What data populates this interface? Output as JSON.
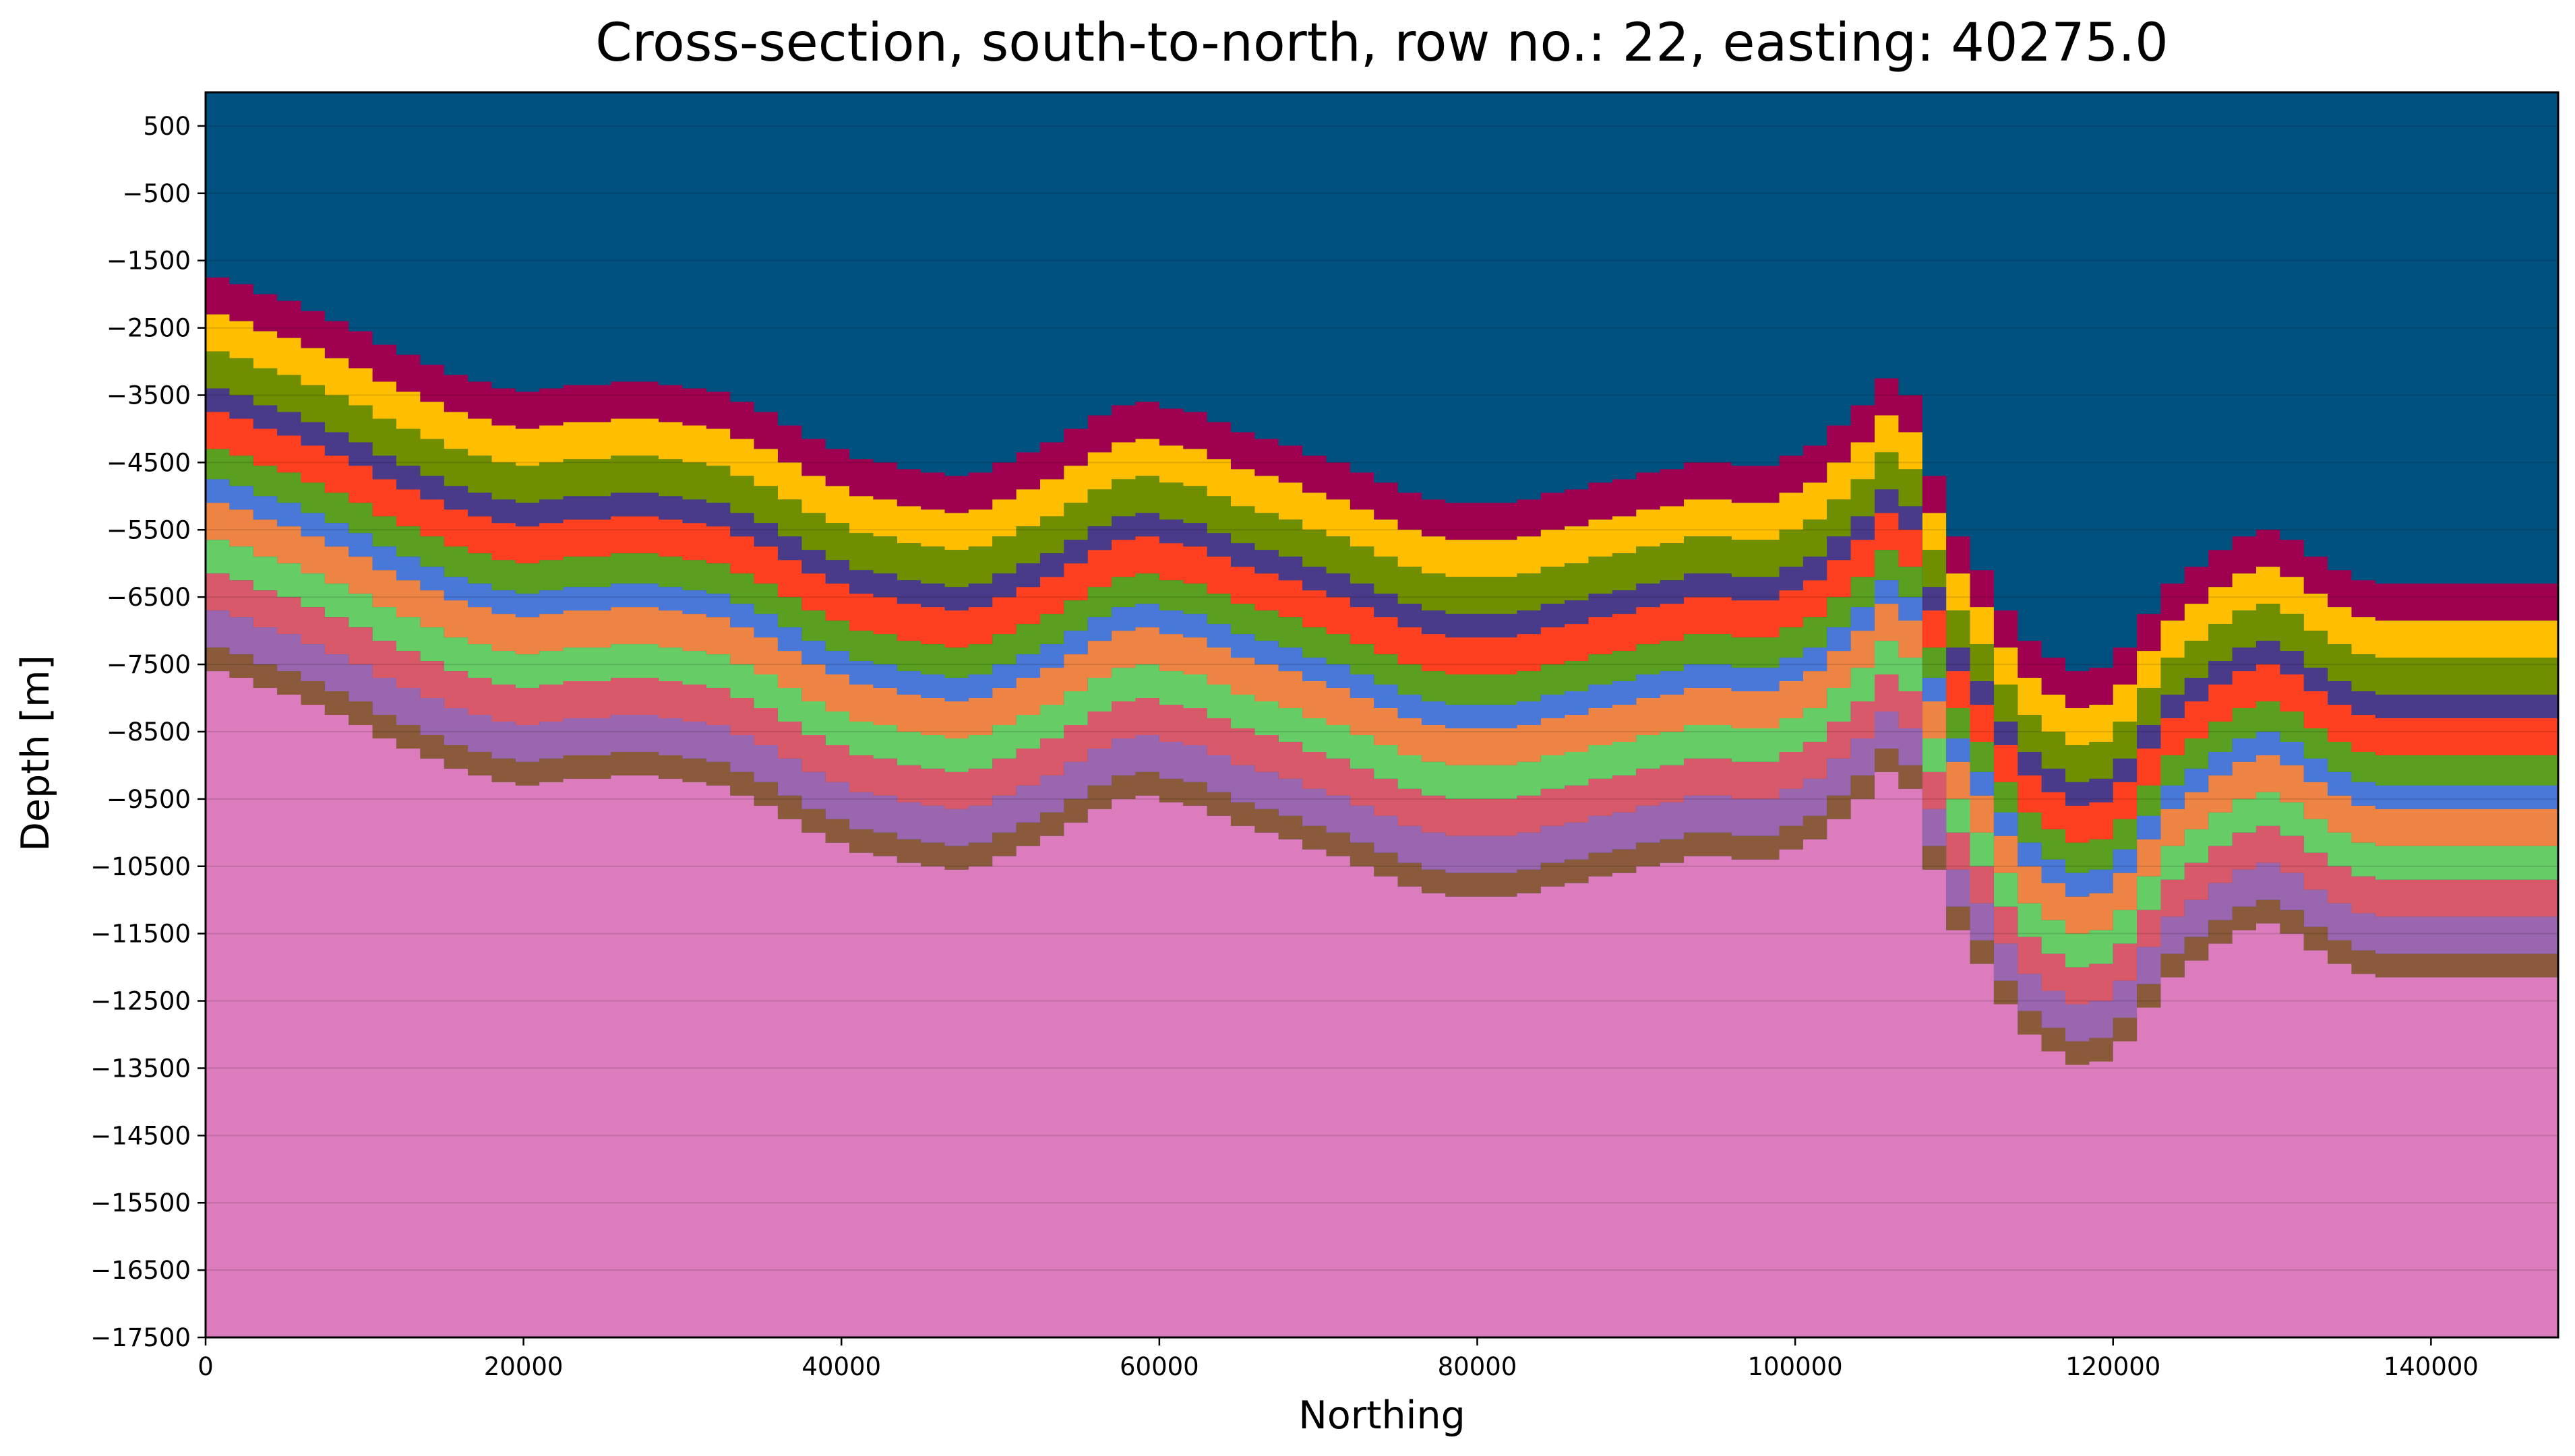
{
  "chart_data": {
    "type": "area",
    "title": "Cross-section, south-to-north, row no.: 22, easting: 40275.0",
    "xlabel": "Northing",
    "ylabel": "Depth [m]",
    "xlim": [
      0,
      148000
    ],
    "ylim": [
      -17500,
      1000
    ],
    "xticks": [
      0,
      20000,
      40000,
      60000,
      80000,
      100000,
      120000,
      140000
    ],
    "yticks": [
      500,
      -500,
      -1500,
      -2500,
      -3500,
      -4500,
      -5500,
      -6500,
      -7500,
      -8500,
      -9500,
      -10500,
      -11500,
      -12500,
      -13500,
      -14500,
      -15500,
      -16500,
      -17500
    ],
    "grid": true,
    "background_color": "#005080",
    "layer_colors": [
      "#a00050",
      "#ffbf00",
      "#6f8f00",
      "#4a3a8a",
      "#ff4020",
      "#5a9f20",
      "#4a78d8",
      "#ee8444",
      "#66cc66",
      "#d85a6a",
      "#9a66b0",
      "#8a5a3a",
      "#dc7cbc"
    ],
    "basement_color": "#dc7cbc",
    "layer_thickness_m": [
      550,
      550,
      550,
      350,
      550,
      450,
      350,
      550,
      500,
      550,
      550,
      350
    ],
    "x": [
      0,
      4000,
      8000,
      12000,
      16000,
      20000,
      24000,
      28000,
      32000,
      36000,
      40000,
      44000,
      48000,
      52000,
      56000,
      58500,
      62000,
      66000,
      70000,
      74000,
      78000,
      82000,
      86000,
      90000,
      94000,
      98000,
      101000,
      104000,
      106000,
      107000,
      108000,
      109000,
      110000,
      111500,
      113000,
      115000,
      117500,
      120000,
      122000,
      124000,
      126000,
      128000,
      130000,
      132000,
      134000,
      136000,
      140000,
      144000,
      148000
    ],
    "top_surface": [
      -1700,
      -2000,
      -2350,
      -2850,
      -3250,
      -3450,
      -3350,
      -3300,
      -3450,
      -3850,
      -4350,
      -4600,
      -4700,
      -4350,
      -3850,
      -3550,
      -3750,
      -4100,
      -4400,
      -4800,
      -5100,
      -5100,
      -4900,
      -4700,
      -4500,
      -4550,
      -4300,
      -3700,
      -3200,
      -3300,
      -4100,
      -4900,
      -5500,
      -6000,
      -6600,
      -7250,
      -7600,
      -7500,
      -6850,
      -6250,
      -5950,
      -5600,
      -5500,
      -5750,
      -6100,
      -6300,
      -6300,
      -6300,
      -6300
    ]
  }
}
